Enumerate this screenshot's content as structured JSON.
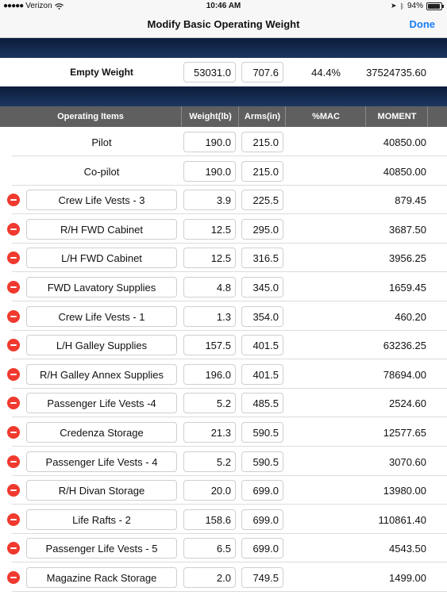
{
  "status": {
    "carrier": "Verizon",
    "time": "10:46 AM",
    "battery": "94%",
    "battery_level": 0.94
  },
  "nav": {
    "title": "Modify Basic Operating Weight",
    "done": "Done"
  },
  "empty": {
    "label": "Empty Weight",
    "weight": "53031.0",
    "arm": "707.6",
    "mac": "44.4%",
    "moment": "37524735.60"
  },
  "headers": {
    "items": "Operating Items",
    "weight": "Weight(lb)",
    "arms": "Arms(in)",
    "mac": "%MAC",
    "moment": "MOMENT"
  },
  "rows": [
    {
      "name": "Pilot",
      "weight": "190.0",
      "arm": "215.0",
      "moment": "40850.00",
      "removable": false
    },
    {
      "name": "Co-pilot",
      "weight": "190.0",
      "arm": "215.0",
      "moment": "40850.00",
      "removable": false
    },
    {
      "name": "Crew Life Vests - 3",
      "weight": "3.9",
      "arm": "225.5",
      "moment": "879.45",
      "removable": true
    },
    {
      "name": "R/H FWD Cabinet",
      "weight": "12.5",
      "arm": "295.0",
      "moment": "3687.50",
      "removable": true
    },
    {
      "name": "L/H FWD Cabinet",
      "weight": "12.5",
      "arm": "316.5",
      "moment": "3956.25",
      "removable": true
    },
    {
      "name": "FWD Lavatory Supplies",
      "weight": "4.8",
      "arm": "345.0",
      "moment": "1659.45",
      "removable": true
    },
    {
      "name": "Crew Life Vests - 1",
      "weight": "1.3",
      "arm": "354.0",
      "moment": "460.20",
      "removable": true
    },
    {
      "name": "L/H Galley Supplies",
      "weight": "157.5",
      "arm": "401.5",
      "moment": "63236.25",
      "removable": true
    },
    {
      "name": "R/H Galley Annex Supplies",
      "weight": "196.0",
      "arm": "401.5",
      "moment": "78694.00",
      "removable": true
    },
    {
      "name": "Passenger Life Vests -4",
      "weight": "5.2",
      "arm": "485.5",
      "moment": "2524.60",
      "removable": true
    },
    {
      "name": "Credenza Storage",
      "weight": "21.3",
      "arm": "590.5",
      "moment": "12577.65",
      "removable": true
    },
    {
      "name": "Passenger Life Vests - 4",
      "weight": "5.2",
      "arm": "590.5",
      "moment": "3070.60",
      "removable": true
    },
    {
      "name": "R/H Divan Storage",
      "weight": "20.0",
      "arm": "699.0",
      "moment": "13980.00",
      "removable": true
    },
    {
      "name": "Life Rafts - 2",
      "weight": "158.6",
      "arm": "699.0",
      "moment": "110861.40",
      "removable": true
    },
    {
      "name": "Passenger Life Vests - 5",
      "weight": "6.5",
      "arm": "699.0",
      "moment": "4543.50",
      "removable": true
    },
    {
      "name": "Magazine Rack Storage",
      "weight": "2.0",
      "arm": "749.5",
      "moment": "1499.00",
      "removable": true
    }
  ]
}
